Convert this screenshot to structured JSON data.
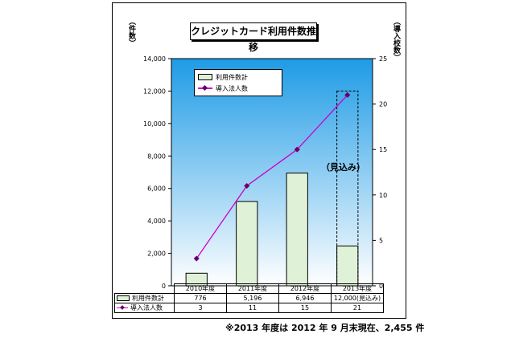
{
  "title": "クレジットカード利用件数推移",
  "left_axis_label": "（件数）",
  "right_axis_label": "（導入校数）",
  "legend": {
    "bar_label": "利用件数計",
    "line_label": "導入法人数"
  },
  "forecast_label": "（見込み）",
  "footnote": "※2013 年度は 2012 年 9 月末現在、2,455 件",
  "table": {
    "headers": [
      "2010年度",
      "2011年度",
      "2012年度",
      "2013年度"
    ],
    "bar_row_label": "利用件数計",
    "bar_row_values": [
      "776",
      "5,196",
      "6,946",
      "12,000(見込み)"
    ],
    "line_row_label": "導入法人数",
    "line_row_values": [
      "3",
      "11",
      "15",
      "21"
    ]
  },
  "chart_data": {
    "type": "bar",
    "categories": [
      "2010年度",
      "2011年度",
      "2012年度",
      "2013年度"
    ],
    "series": [
      {
        "name": "利用件数計",
        "type": "bar",
        "axis": "left",
        "values": [
          776,
          5196,
          6946,
          2455
        ],
        "forecast_values": [
          null,
          null,
          null,
          12000
        ]
      },
      {
        "name": "導入法人数",
        "type": "line",
        "axis": "right",
        "values": [
          3,
          11,
          15,
          21
        ]
      }
    ],
    "left_axis": {
      "min": 0,
      "max": 14000,
      "ticks": [
        "0",
        "2,000",
        "4,000",
        "6,000",
        "8,000",
        "10,000",
        "12,000",
        "14,000"
      ]
    },
    "right_axis": {
      "min": 0,
      "max": 25,
      "ticks": [
        "0",
        "5",
        "10",
        "15",
        "20",
        "25"
      ]
    },
    "grid": false,
    "legend_position": "top-left",
    "colors": {
      "bar_fill": "#dff2d8",
      "line": "#cc00cc",
      "marker": "#660066",
      "plot_top": "#1e9be6",
      "plot_bottom": "#ffffff"
    }
  }
}
